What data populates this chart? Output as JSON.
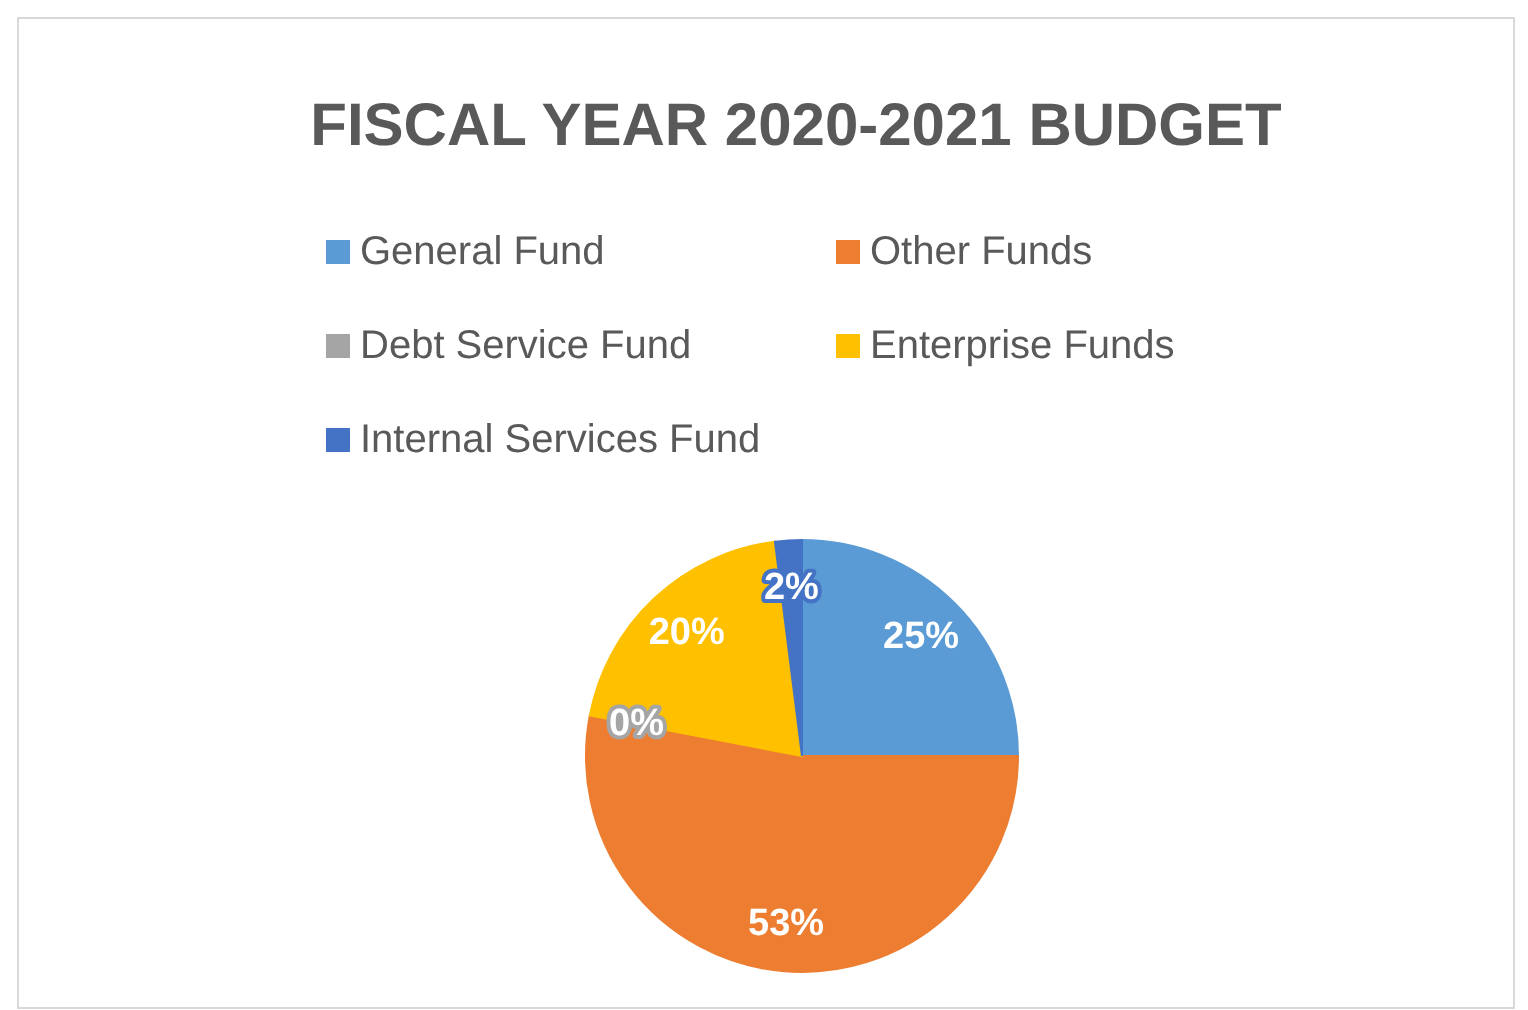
{
  "chart_data": {
    "type": "pie",
    "title": "FISCAL YEAR 2020-2021 BUDGET",
    "categories": [
      "General Fund",
      "Other Funds",
      "Debt Service Fund",
      "Enterprise Funds",
      "Internal Services Fund"
    ],
    "values": [
      25,
      53,
      0,
      20,
      2
    ],
    "colors": [
      "#5b9bd5",
      "#ed7d31",
      "#a5a5a5",
      "#ffc000",
      "#4472c4"
    ],
    "value_labels": [
      "25%",
      "53%",
      "0%",
      "20%",
      "2%"
    ],
    "legend": "top"
  }
}
